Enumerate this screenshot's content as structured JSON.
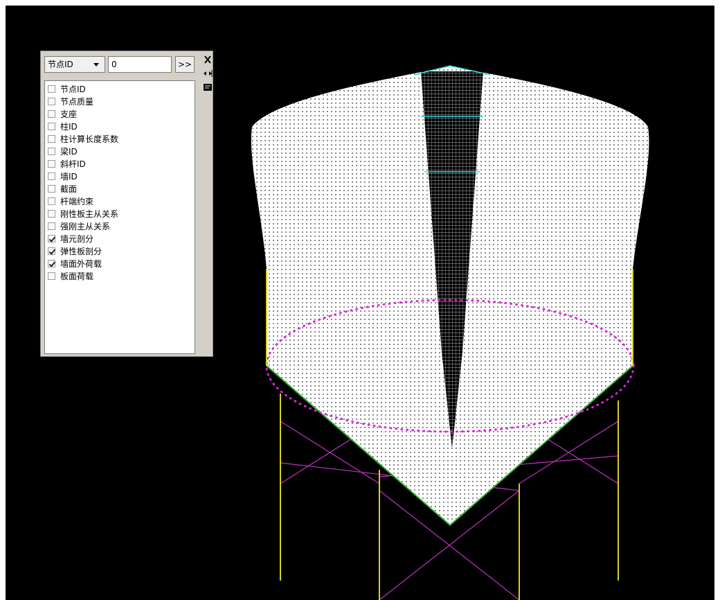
{
  "panel": {
    "dropdown": "节点ID",
    "input": "0",
    "button": ">>",
    "items": [
      {
        "label": "节点ID",
        "checked": false
      },
      {
        "label": "节点质量",
        "checked": false
      },
      {
        "label": "支座",
        "checked": false
      },
      {
        "label": "柱ID",
        "checked": false
      },
      {
        "label": "柱计算长度系数",
        "checked": false
      },
      {
        "label": "梁ID",
        "checked": false
      },
      {
        "label": "斜杆ID",
        "checked": false
      },
      {
        "label": "墙ID",
        "checked": false
      },
      {
        "label": "截面",
        "checked": false
      },
      {
        "label": "杆端约束",
        "checked": false
      },
      {
        "label": "刚性板主从关系",
        "checked": false
      },
      {
        "label": "强刚主从关系",
        "checked": false
      },
      {
        "label": "墙元剖分",
        "checked": true
      },
      {
        "label": "弹性板剖分",
        "checked": true
      },
      {
        "label": "墙面外荷载",
        "checked": true
      },
      {
        "label": "板面荷载",
        "checked": false
      }
    ]
  }
}
